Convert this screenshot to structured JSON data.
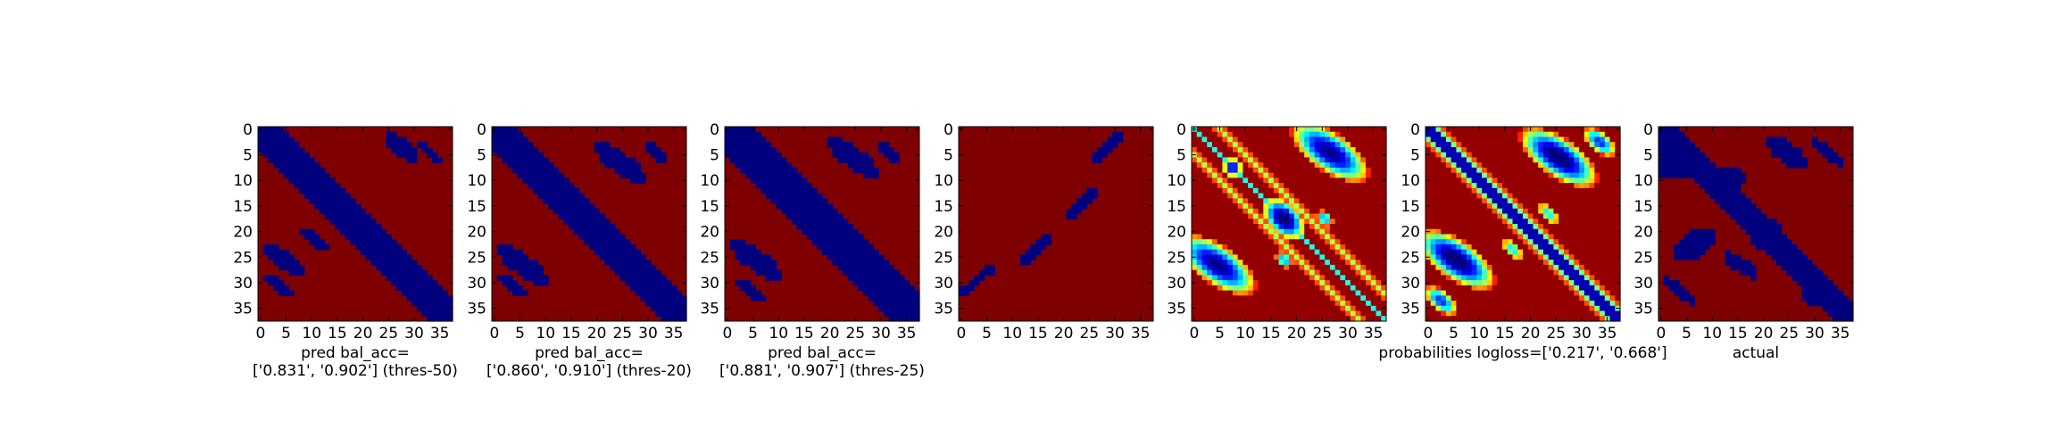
{
  "colors": {
    "background": "#7f0000",
    "contact": "#00007f",
    "frame": "#000000"
  },
  "chart_data": [
    {
      "type": "heatmap",
      "map": "binary",
      "caption": [
        "pred bal_acc=",
        "['0.831', '0.902'] (thres-50)"
      ],
      "xticks": [
        0,
        5,
        10,
        15,
        20,
        25,
        30,
        35
      ],
      "yticks": [
        0,
        5,
        10,
        15,
        20,
        25,
        30,
        35
      ],
      "xlim": [
        0,
        38
      ],
      "ylim": [
        38,
        0
      ],
      "diagonal_band": {
        "offset_min": -4,
        "offset_max": 4
      },
      "blobs": [
        {
          "x": 28,
          "y": 4,
          "w": 1.6,
          "h": 4,
          "a": -55
        },
        {
          "x": 33.5,
          "y": 5,
          "w": 1.0,
          "h": 3,
          "a": -50
        },
        {
          "x": 5,
          "y": 26,
          "w": 1.6,
          "h": 5,
          "a": -55
        },
        {
          "x": 11,
          "y": 22,
          "w": 1.2,
          "h": 3,
          "a": -60
        },
        {
          "x": 4,
          "y": 31,
          "w": 1.0,
          "h": 3.5,
          "a": -50
        }
      ],
      "lines": []
    },
    {
      "type": "heatmap",
      "map": "binary",
      "caption": [
        "pred bal_acc=",
        "['0.860', '0.910'] (thres-20)"
      ],
      "xticks": [
        0,
        5,
        10,
        15,
        20,
        25,
        30,
        35
      ],
      "yticks": [
        0,
        5,
        10,
        15,
        20,
        25,
        30,
        35
      ],
      "xlim": [
        0,
        38
      ],
      "ylim": [
        38,
        0
      ],
      "diagonal_band": {
        "offset_min": -4.5,
        "offset_max": 4.5
      },
      "blobs": [
        {
          "x": 25,
          "y": 7,
          "w": 2.0,
          "h": 6,
          "a": -55
        },
        {
          "x": 32,
          "y": 5,
          "w": 1.0,
          "h": 3,
          "a": -50
        },
        {
          "x": 6,
          "y": 27,
          "w": 2.0,
          "h": 6,
          "a": -55
        },
        {
          "x": 4,
          "y": 31,
          "w": 1.2,
          "h": 3.5,
          "a": -50
        }
      ],
      "lines": []
    },
    {
      "type": "heatmap",
      "map": "binary",
      "caption": [
        "pred bal_acc=",
        "['0.881', '0.907'] (thres-25)"
      ],
      "xticks": [
        0,
        5,
        10,
        15,
        20,
        25,
        30,
        35
      ],
      "yticks": [
        0,
        5,
        10,
        15,
        20,
        25,
        30,
        35
      ],
      "xlim": [
        0,
        38
      ],
      "ylim": [
        38,
        0
      ],
      "diagonal_band": {
        "offset_min": -5,
        "offset_max": 5
      },
      "blobs": [
        {
          "x": 25,
          "y": 6,
          "w": 2.0,
          "h": 6,
          "a": -55
        },
        {
          "x": 32,
          "y": 5,
          "w": 1.0,
          "h": 3,
          "a": -50
        },
        {
          "x": 6,
          "y": 26,
          "w": 2.0,
          "h": 6,
          "a": -55
        },
        {
          "x": 5,
          "y": 32,
          "w": 1.2,
          "h": 3.5,
          "a": -50
        },
        {
          "x": 19,
          "y": 19,
          "w": 1.0,
          "h": 5,
          "a": -45
        }
      ],
      "lines": []
    },
    {
      "type": "heatmap",
      "map": "binary",
      "caption": [],
      "xticks": [
        0,
        5,
        10,
        15,
        20,
        25,
        30,
        35
      ],
      "yticks": [
        0,
        5,
        10,
        15,
        20,
        25,
        30,
        35
      ],
      "xlim": [
        0,
        38
      ],
      "ylim": [
        38,
        0
      ],
      "diagonal_band": null,
      "blobs": [],
      "lines": [
        {
          "x1": 27,
          "y1": 6,
          "x2": 31,
          "y2": 2
        },
        {
          "x1": 22,
          "y1": 17,
          "x2": 26,
          "y2": 13
        },
        {
          "x1": 13,
          "y1": 26,
          "x2": 17,
          "y2": 22
        },
        {
          "x1": 1,
          "y1": 32,
          "x2": 6,
          "y2": 28
        }
      ]
    },
    {
      "type": "heatmap",
      "map": "probability",
      "caption": [],
      "xticks": [
        0,
        5,
        10,
        15,
        20,
        25,
        30,
        35
      ],
      "yticks": [
        0,
        5,
        10,
        15,
        20,
        25,
        30,
        35
      ],
      "xlim": [
        0,
        38
      ],
      "ylim": [
        38,
        0
      ],
      "diag_offset": 5,
      "blobs": [
        {
          "x": 27,
          "y": 5,
          "w": 3,
          "h": 7,
          "a": -55,
          "v": 0.85
        },
        {
          "x": 5,
          "y": 27,
          "w": 3,
          "h": 7,
          "a": -55,
          "v": 0.85
        },
        {
          "x": 18,
          "y": 18,
          "w": 2.5,
          "h": 4,
          "a": -45,
          "v": 0.9
        },
        {
          "x": 8,
          "y": 8,
          "w": 1.5,
          "h": 1.5,
          "a": 0,
          "v": 0.8
        },
        {
          "x": 26,
          "y": 18,
          "w": 1.0,
          "h": 1.5,
          "a": -45,
          "v": 0.6
        },
        {
          "x": 18,
          "y": 26,
          "w": 1.0,
          "h": 1.5,
          "a": -45,
          "v": 0.6
        }
      ]
    },
    {
      "type": "heatmap",
      "map": "probability",
      "caption": [
        "probabilities logloss=['0.217', '0.668']"
      ],
      "xticks": [
        0,
        5,
        10,
        15,
        20,
        25,
        30,
        35
      ],
      "yticks": [
        0,
        5,
        10,
        15,
        20,
        25,
        30,
        35
      ],
      "xlim": [
        0,
        38
      ],
      "ylim": [
        38,
        0
      ],
      "diag_offset": 0,
      "blobs": [
        {
          "x": 26,
          "y": 6,
          "w": 3,
          "h": 7,
          "a": -55,
          "v": 0.9
        },
        {
          "x": 6,
          "y": 26,
          "w": 3,
          "h": 7,
          "a": -55,
          "v": 0.9
        },
        {
          "x": 34,
          "y": 3,
          "w": 1.5,
          "h": 3,
          "a": -50,
          "v": 0.7
        },
        {
          "x": 3,
          "y": 34,
          "w": 1.5,
          "h": 3,
          "a": -50,
          "v": 0.7
        },
        {
          "x": 24,
          "y": 17,
          "w": 1.0,
          "h": 2,
          "a": -45,
          "v": 0.5
        },
        {
          "x": 17,
          "y": 24,
          "w": 1.0,
          "h": 2,
          "a": -45,
          "v": 0.5
        }
      ]
    },
    {
      "type": "heatmap",
      "map": "binary",
      "caption": [
        "actual"
      ],
      "xticks": [
        0,
        5,
        10,
        15,
        20,
        25,
        30,
        35
      ],
      "yticks": [
        0,
        5,
        10,
        15,
        20,
        25,
        30,
        35
      ],
      "xlim": [
        0,
        38
      ],
      "ylim": [
        38,
        0
      ],
      "diagonal_band": {
        "offset_min": -3,
        "offset_max": 3
      },
      "blobs": [
        {
          "x": 3,
          "y": 7,
          "w": 5,
          "h": 3,
          "a": 0
        },
        {
          "x": 13,
          "y": 10,
          "w": 4,
          "h": 2.5,
          "a": 0
        },
        {
          "x": 25,
          "y": 5,
          "w": 2,
          "h": 5,
          "a": -55
        },
        {
          "x": 21,
          "y": 21,
          "w": 3,
          "h": 3,
          "a": 0
        },
        {
          "x": 7,
          "y": 23,
          "w": 5,
          "h": 2.5,
          "a": -30
        },
        {
          "x": 33,
          "y": 5,
          "w": 1.2,
          "h": 4,
          "a": -50
        },
        {
          "x": 32,
          "y": 33,
          "w": 4,
          "h": 2.5,
          "a": 0
        },
        {
          "x": 4,
          "y": 32,
          "w": 1.2,
          "h": 4,
          "a": -50
        },
        {
          "x": 16,
          "y": 27,
          "w": 1.5,
          "h": 4,
          "a": -55
        }
      ],
      "lines": []
    }
  ]
}
